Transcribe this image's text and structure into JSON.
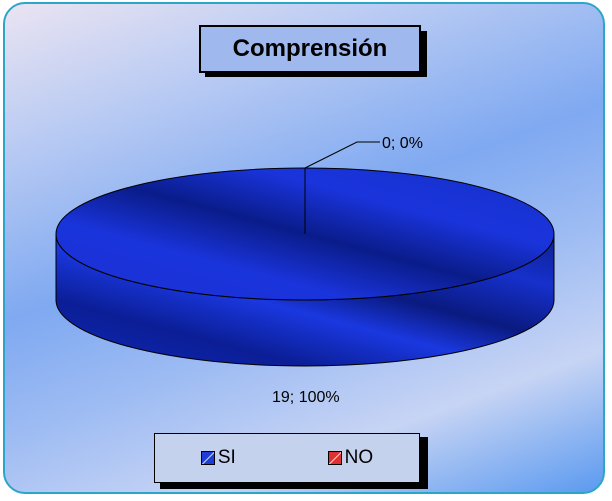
{
  "chart_data": {
    "type": "pie",
    "title": "Comprensión",
    "slices": [
      {
        "label": "SI",
        "value": 19,
        "percent": "100%",
        "data_label": "19; 100%",
        "color": "#1f3ed6"
      },
      {
        "label": "NO",
        "value": 0,
        "percent": "0%",
        "data_label": "0; 0%",
        "color": "#e03030"
      }
    ],
    "legend_position": "bottom",
    "style": "3d"
  },
  "legend": [
    {
      "label": "SI",
      "color": "#1f3ed6"
    },
    {
      "label": "NO",
      "color": "#e03030"
    }
  ]
}
